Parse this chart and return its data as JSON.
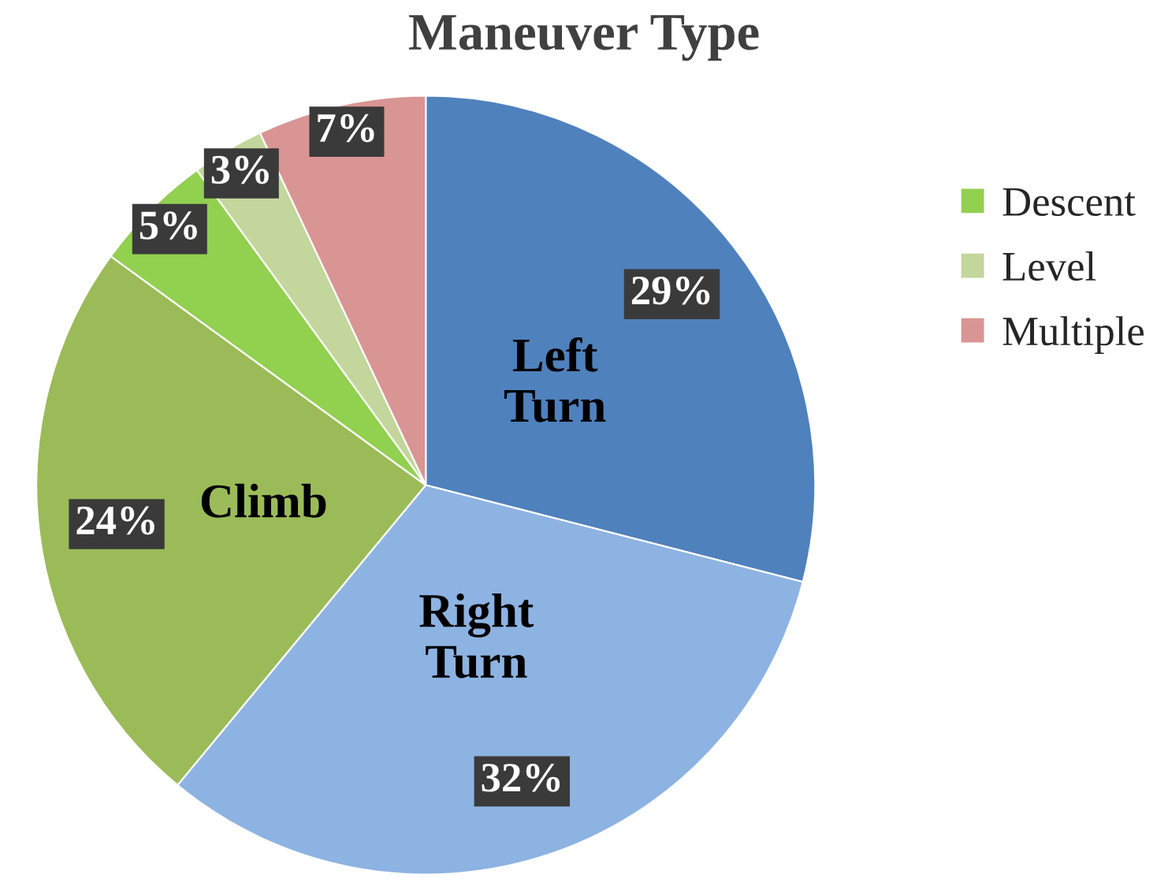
{
  "chart_data": {
    "type": "pie",
    "title": "Maneuver Type",
    "categories": [
      "Left Turn",
      "Right Turn",
      "Climb",
      "Descent",
      "Level",
      "Multiple"
    ],
    "values": [
      29,
      32,
      24,
      5,
      3,
      7
    ],
    "colors": [
      "#4f81bd",
      "#8db3e2",
      "#9bbb59",
      "#92d050",
      "#c3d69b",
      "#d99594"
    ],
    "value_labels": [
      "29%",
      "32%",
      "24%",
      "5%",
      "3%",
      "7%"
    ],
    "legend": "right"
  }
}
